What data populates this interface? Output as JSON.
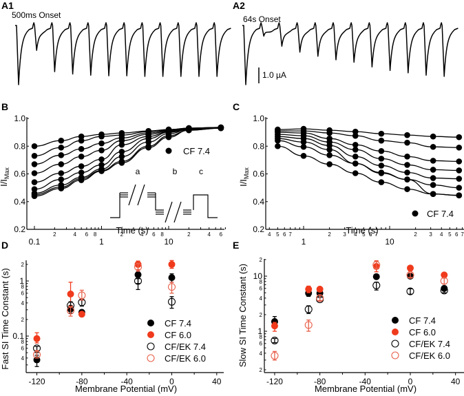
{
  "colors": {
    "black": "#000000",
    "red": "#f03a1c",
    "light_red": "#e8604a"
  },
  "chart_data": [
    {
      "id": "A1",
      "type": "line",
      "panel_label": "A1",
      "annotation": "500ms Onset",
      "description": "Current trace: initial full inward current, then repeated test pulses showing recovery after 500ms onset",
      "peaks_relative": [
        1.0,
        0.42,
        0.78,
        0.82,
        0.84,
        0.85,
        0.85,
        0.86,
        0.86,
        0.86,
        0.86,
        0.86
      ]
    },
    {
      "id": "A2",
      "type": "line",
      "panel_label": "A2",
      "annotation": "64s Onset",
      "scale_bar_label": "1.0 µA",
      "peaks_relative": [
        1.0,
        0.18,
        0.35,
        0.45,
        0.52,
        0.58,
        0.62,
        0.7,
        0.76,
        0.8,
        0.84,
        0.86
      ]
    },
    {
      "id": "B",
      "type": "line",
      "panel_label": "B",
      "xlabel": "Time (s)",
      "ylabel": "I/I",
      "ylabel_sub": "Max",
      "xscale": "log",
      "xlim": [
        0.1,
        70
      ],
      "ylim": [
        0.2,
        1.0
      ],
      "yticks": [
        "0.2",
        "0.4",
        "0.6",
        "0.8",
        "1.0"
      ],
      "xticks_major": [
        {
          "v": 0.1,
          "label": "0.1"
        },
        {
          "v": 1,
          "label": "1"
        },
        {
          "v": 10,
          "label": "10"
        }
      ],
      "xticks_minor": [
        {
          "v": 0.2,
          "label": "2"
        },
        {
          "v": 0.4,
          "label": "4"
        },
        {
          "v": 0.6,
          "label": "6"
        },
        {
          "v": 0.8,
          "label": "8"
        },
        {
          "v": 2,
          "label": "2"
        },
        {
          "v": 4,
          "label": "4"
        },
        {
          "v": 6,
          "label": "6"
        },
        {
          "v": 8,
          "label": "8"
        },
        {
          "v": 20,
          "label": "2"
        },
        {
          "v": 40,
          "label": "4"
        },
        {
          "v": 60,
          "label": "6"
        }
      ],
      "legend": [
        {
          "label": "CF 7.4",
          "marker": "filled",
          "color": "#000000"
        }
      ],
      "legend_position": "right",
      "protocol_labels": [
        "a",
        "b",
        "c"
      ],
      "x": [
        0.1,
        0.25,
        0.5,
        1,
        2,
        5,
        10,
        20,
        60
      ],
      "series": [
        {
          "name": "s1",
          "values": [
            0.8,
            0.84,
            0.87,
            0.885,
            0.895,
            0.91,
            0.92,
            0.93,
            0.935
          ]
        },
        {
          "name": "s2",
          "values": [
            0.73,
            0.79,
            0.84,
            0.87,
            0.88,
            0.905,
            0.92,
            0.93,
            0.935
          ]
        },
        {
          "name": "s3",
          "values": [
            0.67,
            0.735,
            0.78,
            0.82,
            0.86,
            0.895,
            0.915,
            0.93,
            0.935
          ]
        },
        {
          "name": "s4",
          "values": [
            0.605,
            0.67,
            0.725,
            0.77,
            0.84,
            0.885,
            0.91,
            0.925,
            0.935
          ]
        },
        {
          "name": "s5",
          "values": [
            0.54,
            0.605,
            0.655,
            0.705,
            0.81,
            0.87,
            0.905,
            0.925,
            0.935
          ]
        },
        {
          "name": "s6",
          "values": [
            0.49,
            0.56,
            0.61,
            0.665,
            0.76,
            0.855,
            0.9,
            0.92,
            0.935
          ]
        },
        {
          "name": "s7",
          "values": [
            0.46,
            0.52,
            0.575,
            0.635,
            0.725,
            0.83,
            0.89,
            0.92,
            0.93
          ]
        },
        {
          "name": "s8",
          "values": [
            0.45,
            0.505,
            0.565,
            0.625,
            0.69,
            0.8,
            0.875,
            0.915,
            0.93
          ]
        },
        {
          "name": "s9",
          "values": [
            0.44,
            0.495,
            0.555,
            0.62,
            0.68,
            0.79,
            0.865,
            0.915,
            0.93
          ]
        }
      ]
    },
    {
      "id": "C",
      "type": "line",
      "panel_label": "C",
      "xlabel": "Time (s)",
      "ylabel": "I/I",
      "ylabel_sub": "Max",
      "xscale": "log",
      "xlim": [
        0.38,
        70
      ],
      "ylim": [
        0.2,
        1.0
      ],
      "yticks": [
        "0.2",
        "0.4",
        "0.6",
        "0.8",
        "1.0"
      ],
      "xticks_major": [
        {
          "v": 1,
          "label": "1"
        },
        {
          "v": 10,
          "label": "10"
        }
      ],
      "xticks_minor": [
        {
          "v": 0.4,
          "label": "4"
        },
        {
          "v": 0.5,
          "label": "5"
        },
        {
          "v": 0.6,
          "label": "6"
        },
        {
          "v": 0.7,
          "label": "7"
        },
        {
          "v": 2,
          "label": "2"
        },
        {
          "v": 3,
          "label": "3"
        },
        {
          "v": 4,
          "label": "4"
        },
        {
          "v": 5,
          "label": "5"
        },
        {
          "v": 6,
          "label": "6"
        },
        {
          "v": 7,
          "label": "7"
        },
        {
          "v": 20,
          "label": "2"
        },
        {
          "v": 30,
          "label": "3"
        },
        {
          "v": 40,
          "label": "4"
        },
        {
          "v": 50,
          "label": "5"
        },
        {
          "v": 60,
          "label": "6"
        },
        {
          "v": 70,
          "label": "7"
        }
      ],
      "legend": [
        {
          "label": "CF 7.4",
          "marker": "filled",
          "color": "#000000"
        }
      ],
      "legend_position": "bottom-right",
      "x": [
        0.5,
        1,
        2,
        4,
        8,
        16,
        32,
        64
      ],
      "series": [
        {
          "name": "s1",
          "values": [
            0.92,
            0.925,
            0.915,
            0.905,
            0.89,
            0.88,
            0.87,
            0.865
          ]
        },
        {
          "name": "s2",
          "values": [
            0.91,
            0.91,
            0.895,
            0.875,
            0.84,
            0.825,
            0.795,
            0.79
          ]
        },
        {
          "name": "s3",
          "values": [
            0.9,
            0.895,
            0.855,
            0.81,
            0.765,
            0.725,
            0.695,
            0.69
          ]
        },
        {
          "name": "s4",
          "values": [
            0.885,
            0.875,
            0.83,
            0.775,
            0.71,
            0.665,
            0.63,
            0.625
          ]
        },
        {
          "name": "s5",
          "values": [
            0.87,
            0.855,
            0.805,
            0.725,
            0.66,
            0.61,
            0.57,
            0.565
          ]
        },
        {
          "name": "s6",
          "values": [
            0.855,
            0.83,
            0.775,
            0.675,
            0.61,
            0.56,
            0.52,
            0.5
          ]
        },
        {
          "name": "s7",
          "values": [
            0.84,
            0.795,
            0.735,
            0.675,
            0.605,
            0.56,
            0.455,
            0.445
          ]
        },
        {
          "name": "s8",
          "values": [
            0.8,
            0.73,
            0.67,
            0.605,
            0.54,
            0.49,
            0.455,
            0.445
          ]
        }
      ]
    },
    {
      "id": "D",
      "type": "scatter",
      "panel_label": "D",
      "xlabel": "Membrane Potential (mV)",
      "ylabel": "Fast SI Time Constant (s)",
      "xlim": [
        -130,
        45
      ],
      "yscale": "log",
      "ylim": [
        0.022,
        2.5
      ],
      "xticks": [
        "-120",
        "-80",
        "-40",
        "0",
        "40"
      ],
      "yticks_major": [
        {
          "v": 0.1,
          "label": "0.1"
        },
        {
          "v": 1,
          "label": "1"
        }
      ],
      "yticks_minor": [
        {
          "v": 0.04,
          "label": "4"
        },
        {
          "v": 0.06,
          "label": "6"
        },
        {
          "v": 0.08,
          "label": "8"
        },
        {
          "v": 0.2,
          "label": "2"
        },
        {
          "v": 0.4,
          "label": "4"
        },
        {
          "v": 0.6,
          "label": "6"
        },
        {
          "v": 0.8,
          "label": "8"
        },
        {
          "v": 2,
          "label": "2"
        }
      ],
      "legend_position": "bottom-right",
      "series": [
        {
          "name": "CF 7.4",
          "marker": "filled",
          "color": "#000000",
          "points": [
            {
              "x": -120,
              "y": 0.037,
              "lo": 0.028,
              "hi": 0.045
            },
            {
              "x": -90,
              "y": 0.31,
              "lo": 0.26,
              "hi": 0.36
            },
            {
              "x": -80,
              "y": 0.27,
              "lo": 0.25,
              "hi": 0.29
            },
            {
              "x": -30,
              "y": 1.3,
              "lo": 0.7,
              "hi": 1.5
            },
            {
              "x": 0,
              "y": 1.15,
              "lo": 0.95,
              "hi": 1.35
            }
          ]
        },
        {
          "name": "CF 6.0",
          "marker": "filled",
          "color": "#f03a1c",
          "points": [
            {
              "x": -120,
              "y": 0.09,
              "lo": 0.075,
              "hi": 0.115
            },
            {
              "x": -90,
              "y": 0.58,
              "lo": 0.35,
              "hi": 0.95
            },
            {
              "x": -80,
              "y": 0.25,
              "lo": 0.23,
              "hi": 0.27
            },
            {
              "x": -30,
              "y": 2.0,
              "lo": 1.6,
              "hi": 2.3
            },
            {
              "x": 0,
              "y": 2.0,
              "lo": 1.7,
              "hi": 2.35
            }
          ]
        },
        {
          "name": "CF/EK 7.4",
          "marker": "open",
          "color": "#000000",
          "points": [
            {
              "x": -120,
              "y": 0.06,
              "lo": 0.05,
              "hi": 0.065
            },
            {
              "x": -90,
              "y": 0.36,
              "lo": 0.28,
              "hi": 0.42
            },
            {
              "x": -80,
              "y": 0.41,
              "lo": 0.35,
              "hi": 0.45
            },
            {
              "x": -30,
              "y": 1.0,
              "lo": 0.9,
              "hi": 1.1
            },
            {
              "x": 0,
              "y": 0.42,
              "lo": 0.32,
              "hi": 0.52
            }
          ]
        },
        {
          "name": "CF/EK 6.0",
          "marker": "open",
          "color": "#e8604a",
          "points": [
            {
              "x": -120,
              "y": 0.046,
              "lo": 0.04,
              "hi": 0.055
            },
            {
              "x": -90,
              "y": 0.29,
              "lo": 0.23,
              "hi": 0.34
            },
            {
              "x": -80,
              "y": 0.55,
              "lo": 0.45,
              "hi": 0.68
            },
            {
              "x": -30,
              "y": 1.8,
              "lo": 1.5,
              "hi": 2.1
            },
            {
              "x": 0,
              "y": 0.78,
              "lo": 0.6,
              "hi": 0.95
            }
          ]
        }
      ]
    },
    {
      "id": "E",
      "type": "scatter",
      "panel_label": "E",
      "xlabel": "Membrane Potential (mV)",
      "ylabel": "Slow SI Time Constant (s)",
      "xlim": [
        -130,
        45
      ],
      "yscale": "log",
      "ylim": [
        0.18,
        21
      ],
      "xticks": [
        "-120",
        "-80",
        "-40",
        "0",
        "40"
      ],
      "yticks_major": [
        {
          "v": 1,
          "label": "1"
        },
        {
          "v": 10,
          "label": "10"
        }
      ],
      "yticks_minor": [
        {
          "v": 0.2,
          "label": "2"
        },
        {
          "v": 0.4,
          "label": "4"
        },
        {
          "v": 0.6,
          "label": "6"
        },
        {
          "v": 0.8,
          "label": "8"
        },
        {
          "v": 2,
          "label": "2"
        },
        {
          "v": 4,
          "label": "4"
        },
        {
          "v": 6,
          "label": "6"
        },
        {
          "v": 8,
          "label": "8"
        },
        {
          "v": 20,
          "label": "2"
        }
      ],
      "legend_position": "bottom-right",
      "series": [
        {
          "name": "CF 7.4",
          "marker": "filled",
          "color": "#000000",
          "points": [
            {
              "x": -120,
              "y": 1.5,
              "lo": 1.3,
              "hi": 1.85
            },
            {
              "x": -90,
              "y": 4.9,
              "lo": 4.3,
              "hi": 5.4
            },
            {
              "x": -80,
              "y": 4.9,
              "lo": 4.5,
              "hi": 5.3
            },
            {
              "x": -30,
              "y": 9.8,
              "lo": 9.0,
              "hi": 10.6
            },
            {
              "x": 0,
              "y": 10.0,
              "lo": 9.3,
              "hi": 10.8
            },
            {
              "x": 30,
              "y": 6.0,
              "lo": 5.4,
              "hi": 6.6
            }
          ]
        },
        {
          "name": "CF 6.0",
          "marker": "filled",
          "color": "#f03a1c",
          "points": [
            {
              "x": -120,
              "y": 1.25,
              "lo": 1.0,
              "hi": 1.45
            },
            {
              "x": -90,
              "y": 5.8,
              "lo": 5.0,
              "hi": 6.6
            },
            {
              "x": -80,
              "y": 5.8,
              "lo": 5.2,
              "hi": 6.3
            },
            {
              "x": -30,
              "y": 15.0,
              "lo": 12.0,
              "hi": 19.0
            },
            {
              "x": 0,
              "y": 14.0,
              "lo": 12.5,
              "hi": 15.5
            },
            {
              "x": 30,
              "y": 10.5,
              "lo": 9.8,
              "hi": 11.2
            }
          ]
        },
        {
          "name": "CF/EK 7.4",
          "marker": "open",
          "color": "#000000",
          "points": [
            {
              "x": -120,
              "y": 0.68,
              "lo": 0.62,
              "hi": 0.74
            },
            {
              "x": -90,
              "y": 2.5,
              "lo": 2.1,
              "hi": 2.9
            },
            {
              "x": -80,
              "y": 3.8,
              "lo": 3.5,
              "hi": 4.1
            },
            {
              "x": -30,
              "y": 6.8,
              "lo": 5.6,
              "hi": 7.8
            },
            {
              "x": 0,
              "y": 5.3,
              "lo": 4.7,
              "hi": 5.9
            },
            {
              "x": 30,
              "y": 5.5,
              "lo": 5.0,
              "hi": 6.0
            }
          ]
        },
        {
          "name": "CF/EK 6.0",
          "marker": "open",
          "color": "#e8604a",
          "points": [
            {
              "x": -120,
              "y": 0.36,
              "lo": 0.3,
              "hi": 0.43
            },
            {
              "x": -90,
              "y": 1.3,
              "lo": 1.0,
              "hi": 1.6
            },
            {
              "x": -80,
              "y": 4.0,
              "lo": 3.6,
              "hi": 4.5
            },
            {
              "x": -30,
              "y": 16.0,
              "lo": 13.5,
              "hi": 18.5
            },
            {
              "x": 0,
              "y": 10.5,
              "lo": 9.5,
              "hi": 11.5
            },
            {
              "x": 30,
              "y": 8.2,
              "lo": 7.2,
              "hi": 9.2
            }
          ]
        }
      ]
    }
  ],
  "labels": {
    "A1": "A1",
    "A2": "A2",
    "A1_annotation": "500ms Onset",
    "A2_annotation": "64s Onset",
    "scale_bar": "1.0 µA",
    "B": "B",
    "C": "C",
    "D": "D",
    "E": "E",
    "time_axis": "Time (s)",
    "membrane_axis": "Membrane Potential (mV)",
    "fast_axis": "Fast SI Time Constant (s)",
    "slow_axis": "Slow SI Time Constant (s)",
    "imax_main": "I/I",
    "imax_sub": "Max",
    "legend_cf74": "CF 7.4",
    "legend_cf60": "CF 6.0",
    "legend_cfek74": "CF/EK 7.4",
    "legend_cfek60": "CF/EK 6.0",
    "protocol_a": "a",
    "protocol_b": "b",
    "protocol_c": "c"
  }
}
